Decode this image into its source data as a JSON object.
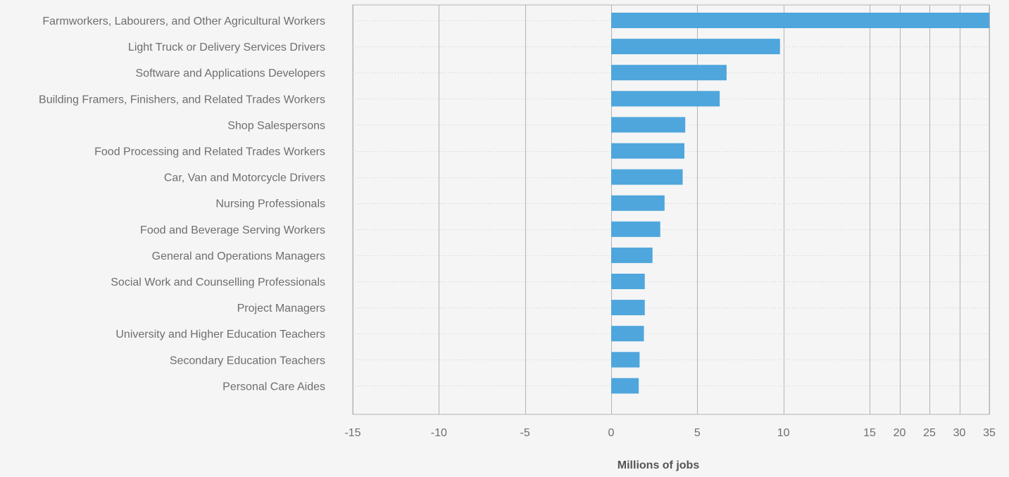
{
  "chart_data": {
    "type": "bar",
    "orientation": "horizontal",
    "title": "",
    "xlabel": "Millions of jobs",
    "ylabel": "",
    "categories": [
      "Farmworkers, Labourers, and Other Agricultural Workers",
      "Light Truck or Delivery Services Drivers",
      "Software and Applications Developers",
      "Building Framers, Finishers, and Related Trades Workers",
      "Shop Salespersons",
      "Food Processing and Related Trades Workers",
      "Car, Van and Motorcycle Drivers",
      "Nursing Professionals",
      "Food and Beverage Serving Workers",
      "General and Operations Managers",
      "Social Work and Counselling Professionals",
      "Project Managers",
      "University and Higher Education Teachers",
      "Secondary Education Teachers",
      "Personal Care Aides"
    ],
    "values": [
      35,
      9.8,
      6.7,
      6.3,
      4.3,
      4.25,
      4.15,
      3.1,
      2.85,
      2.4,
      1.95,
      1.95,
      1.9,
      1.65,
      1.6
    ],
    "x_ticks": [
      -15,
      -10,
      -5,
      0,
      5,
      10,
      15,
      20,
      25,
      30,
      35
    ],
    "x_tick_labels": [
      "-15",
      "-10",
      "-5",
      "0",
      "5",
      "10",
      "15",
      "20",
      "25",
      "30",
      "35"
    ],
    "xlim": [
      -15,
      35
    ],
    "x_scale": "piecewise linear: -15 to 15 at one scale, 15 to 35 compressed",
    "grid": true,
    "legend": "none",
    "colors": {
      "bar": "#4ea6dc",
      "background": "#f5f5f5",
      "grid": "#b3b3b3",
      "row_guide": "#c8c8c8",
      "text": "#6e6e6e",
      "axis_title": "#555555"
    }
  }
}
